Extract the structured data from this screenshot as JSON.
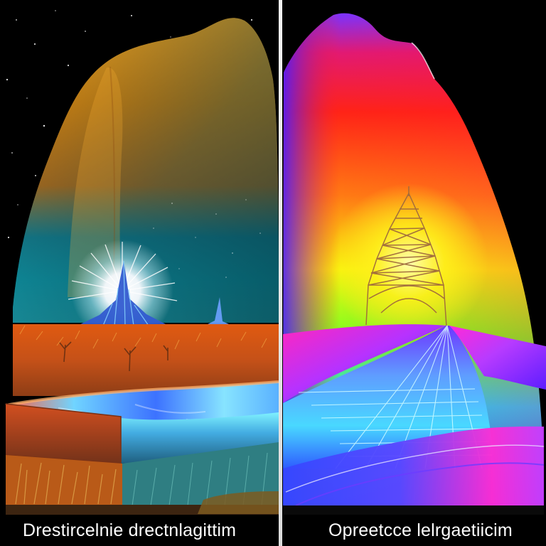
{
  "panels": [
    {
      "caption": "Drestircelnie drectnlagittim",
      "scene": "night-prairie-mountain-orange-teal"
    },
    {
      "caption": "Opreetcce lelrgaetiicim",
      "scene": "rainbow-mountain-tower-rail"
    }
  ],
  "colors": {
    "background": "#000000",
    "divider": "#f0f0f0",
    "left_mountain_top": "#f6a117",
    "left_mountain_bottom": "#19a7b8",
    "right_mountain_top": "#ff1b2e",
    "right_mountain_mid": "#f5f20c",
    "right_mountain_bottom": "#12c7e6",
    "accent_magenta": "#ff2bd6",
    "accent_blue": "#3b4fe8"
  }
}
